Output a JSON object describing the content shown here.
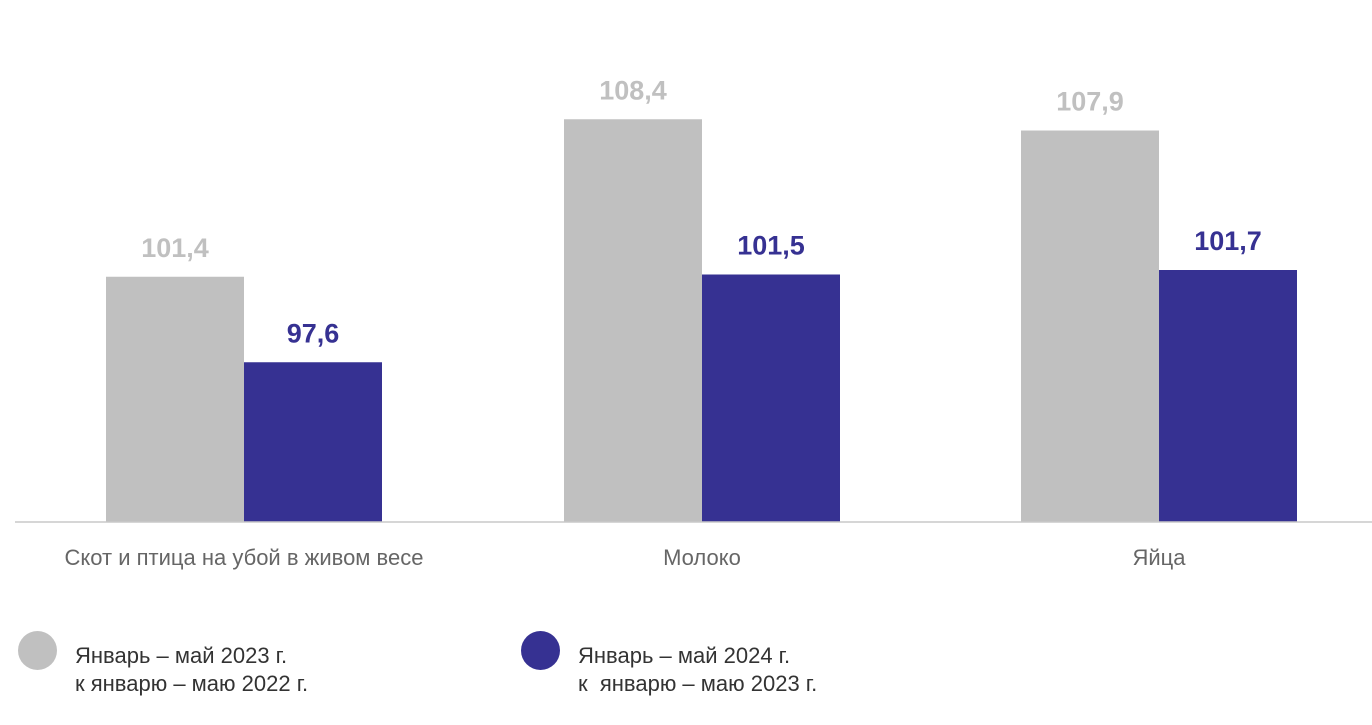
{
  "chart_data": {
    "type": "bar",
    "categories": [
      "Скот и птица на убой в живом весе",
      "Молоко",
      "Яйца"
    ],
    "series": [
      {
        "name": "Январь – май 2023 г. к январю – маю 2022 г.",
        "values": [
          101.4,
          108.4,
          107.9
        ],
        "labels": [
          "101,4",
          "108,4",
          "107,9"
        ],
        "color": "#c0c0c0",
        "label_color": "#c0c0c0"
      },
      {
        "name": "Январь – май 2024 г. к январю – маю 2023 г.",
        "values": [
          97.6,
          101.5,
          101.7
        ],
        "labels": [
          "97,6",
          "101,5",
          "101,7"
        ],
        "color": "#363192",
        "label_color": "#363192"
      }
    ],
    "ylim": [
      0,
      110
    ],
    "grid": false,
    "legend_position": "bottom-left"
  },
  "legend": [
    {
      "line1": "Январь – май 2023 г.",
      "line2": "к январю – маю 2022 г.",
      "color": "#c0c0c0"
    },
    {
      "line1": "Январь – май 2024 г.",
      "line2": "к  январю – маю 2023 г.",
      "color": "#363192"
    }
  ]
}
